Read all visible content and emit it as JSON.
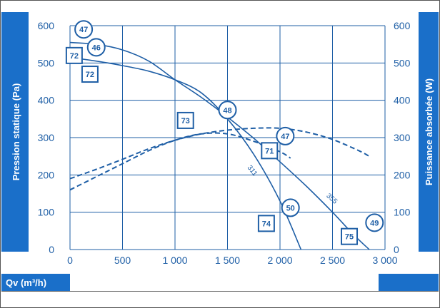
{
  "colors": {
    "primary": "#1f5fa6",
    "band": "#1a6fc9",
    "grid": "#1f5fa6",
    "background": "#ffffff"
  },
  "chart_data": {
    "type": "line",
    "xlabel": "Qv (m³/h)",
    "ylabel": "Pression statique (Pa)",
    "y2label": "Puissance absorbée (W)",
    "xlim": [
      0,
      3000
    ],
    "ylim": [
      0,
      600
    ],
    "y2lim": [
      0,
      600
    ],
    "x_ticks": [
      0,
      500,
      1000,
      1500,
      2000,
      2500,
      3000
    ],
    "x_tick_labels": [
      "0",
      "500",
      "1 000",
      "1 500",
      "2 000",
      "2 500",
      "3 000"
    ],
    "y_ticks": [
      0,
      100,
      200,
      300,
      400,
      500,
      600
    ],
    "y_tick_labels": [
      "0",
      "100",
      "200",
      "300",
      "400",
      "500",
      "600"
    ],
    "grid": true,
    "series": [
      {
        "name": "311",
        "style": "solid",
        "points": [
          [
            0,
            515
          ],
          [
            250,
            505
          ],
          [
            500,
            493
          ],
          [
            750,
            478
          ],
          [
            1000,
            455
          ],
          [
            1250,
            420
          ],
          [
            1500,
            350
          ],
          [
            1750,
            255
          ],
          [
            2000,
            130
          ],
          [
            2200,
            0
          ]
        ]
      },
      {
        "name": "355",
        "style": "solid",
        "points": [
          [
            0,
            555
          ],
          [
            250,
            550
          ],
          [
            500,
            535
          ],
          [
            750,
            505
          ],
          [
            1000,
            455
          ],
          [
            1250,
            408
          ],
          [
            1500,
            355
          ],
          [
            1750,
            298
          ],
          [
            2000,
            235
          ],
          [
            2250,
            170
          ],
          [
            2500,
            100
          ],
          [
            2700,
            40
          ],
          [
            2850,
            0
          ]
        ]
      },
      {
        "name": "",
        "style": "dashed",
        "points": [
          [
            0,
            160
          ],
          [
            250,
            195
          ],
          [
            500,
            230
          ],
          [
            750,
            265
          ],
          [
            1000,
            293
          ],
          [
            1250,
            310
          ],
          [
            1500,
            310
          ],
          [
            1750,
            290
          ],
          [
            2000,
            262
          ],
          [
            2100,
            245
          ]
        ]
      },
      {
        "name": "",
        "style": "dashed",
        "points": [
          [
            0,
            190
          ],
          [
            250,
            215
          ],
          [
            500,
            242
          ],
          [
            750,
            270
          ],
          [
            1000,
            293
          ],
          [
            1250,
            310
          ],
          [
            1500,
            320
          ],
          [
            1750,
            325
          ],
          [
            2000,
            325
          ],
          [
            2250,
            315
          ],
          [
            2500,
            295
          ],
          [
            2750,
            265
          ],
          [
            2850,
            250
          ]
        ]
      }
    ],
    "circle_markers": [
      {
        "text": "47",
        "x": 130,
        "y": 590
      },
      {
        "text": "46",
        "x": 250,
        "y": 542
      },
      {
        "text": "48",
        "x": 1500,
        "y": 374
      },
      {
        "text": "47",
        "x": 2050,
        "y": 304
      },
      {
        "text": "50",
        "x": 2100,
        "y": 112
      },
      {
        "text": "49",
        "x": 2900,
        "y": 72
      }
    ],
    "square_markers": [
      {
        "text": "72",
        "x": 40,
        "y": 520
      },
      {
        "text": "72",
        "x": 190,
        "y": 470
      },
      {
        "text": "73",
        "x": 1100,
        "y": 346
      },
      {
        "text": "71",
        "x": 1900,
        "y": 265
      },
      {
        "text": "74",
        "x": 1870,
        "y": 70
      },
      {
        "text": "75",
        "x": 2660,
        "y": 35
      }
    ],
    "curve_labels": [
      {
        "text": "311",
        "x": 1720,
        "y": 208,
        "angle": 52
      },
      {
        "text": "355",
        "x": 2480,
        "y": 132,
        "angle": 42
      }
    ]
  }
}
